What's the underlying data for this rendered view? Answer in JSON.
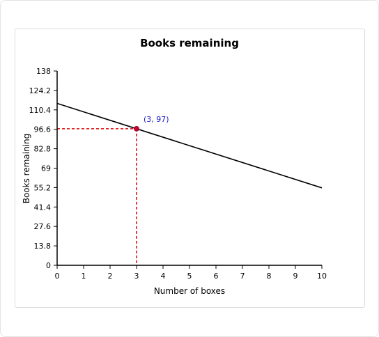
{
  "chart_data": {
    "type": "line",
    "title": "Books remaining",
    "xlabel": "Number of boxes",
    "ylabel": "Books remaining",
    "xlim": [
      0,
      10
    ],
    "ylim": [
      0,
      138
    ],
    "x_ticks": [
      0,
      1,
      2,
      3,
      4,
      5,
      6,
      7,
      8,
      9,
      10
    ],
    "y_ticks": [
      0,
      13.8,
      27.6,
      41.4,
      55.2,
      69,
      82.8,
      96.6,
      110.4,
      124.2,
      138
    ],
    "series": [
      {
        "x": [
          0,
          10
        ],
        "y": [
          115,
          55
        ],
        "color": "#000000"
      }
    ],
    "highlight_point": {
      "x": 3,
      "y": 97,
      "label": "(3, 97)",
      "color": "#cc0033",
      "guide_color": "#e00000"
    },
    "grid": false
  }
}
